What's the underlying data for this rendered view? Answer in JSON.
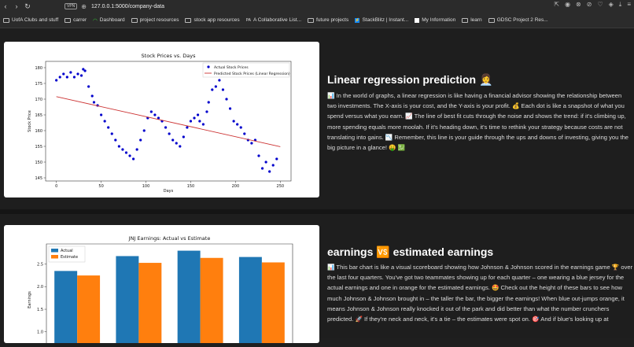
{
  "browser": {
    "url": "127.0.0.1:5000/company-data",
    "vpn_label": "VPN"
  },
  "bookmarks": [
    {
      "label": "UofA Clubs and stuff",
      "icon": "folder-icon"
    },
    {
      "label": "carrer",
      "icon": "folder-icon"
    },
    {
      "label": "Dashboard",
      "icon": "wifi-icon"
    },
    {
      "label": "project resources",
      "icon": "folder-icon"
    },
    {
      "label": "stock app resources",
      "icon": "folder-icon"
    },
    {
      "label": "A Collaborative List...",
      "icon": "pa-icon"
    },
    {
      "label": "future projects",
      "icon": "folder-icon"
    },
    {
      "label": "StackBlitz | Instant...",
      "icon": "stackblitz-icon"
    },
    {
      "label": "My Information",
      "icon": "page-icon"
    },
    {
      "label": "learn",
      "icon": "folder-icon"
    },
    {
      "label": "GDSC Project 2 Res...",
      "icon": "folder-icon"
    }
  ],
  "section1": {
    "heading": "Linear regression prediction 👩‍💼",
    "text": "📊 In the world of graphs, a linear regression is like having a financial advisor showing the relationship between two investments. The X-axis is your cost, and the Y-axis is your profit. 💰 Each dot is like a snapshot of what you spend versus what you earn. 📈 The line of best fit cuts through the noise and shows the trend: if it's climbing up, more spending equals more moolah. If it's heading down, it's time to rethink your strategy because costs are not translating into gains. 📉 Remember, this line is your guide through the ups and downs of investing, giving you the big picture in a glance! 🤑 💹"
  },
  "section2": {
    "heading": "earnings 🆚 estimated earnings",
    "text": "📊 This bar chart is like a visual scoreboard showing how Johnson & Johnson scored in the earnings game 🏆 over the last four quarters. You've got two teammates showing up for each quarter – one wearing a blue jersey for the actual earnings and one in orange for the estimated earnings. 🤩 Check out the height of these bars to see how much Johnson & Johnson brought in – the taller the bar, the bigger the earnings! When blue out-jumps orange, it means Johnson & Johnson really knocked it out of the park and did better than what the number crunchers predicted. 🚀 If they're neck and neck, it's a tie – the estimates were spot on. 🎯 And if blue's looking up at"
  },
  "chart_data": [
    {
      "type": "scatter",
      "title": "Stock Prices vs. Days",
      "xlabel": "Days",
      "ylabel": "Stock Price",
      "xlim": [
        -12,
        262
      ],
      "ylim": [
        144,
        182
      ],
      "xticks": [
        0,
        50,
        100,
        150,
        200,
        250
      ],
      "yticks": [
        145,
        150,
        155,
        160,
        165,
        170,
        175,
        180
      ],
      "legend_position": "top-right",
      "series": [
        {
          "name": "Actual Stock Prices",
          "color": "#0000cc",
          "points": [
            [
              0,
              176
            ],
            [
              4,
              177
            ],
            [
              8,
              178
            ],
            [
              12,
              177
            ],
            [
              16,
              178.5
            ],
            [
              20,
              177
            ],
            [
              24,
              178
            ],
            [
              28,
              177.5
            ],
            [
              30,
              179.5
            ],
            [
              32,
              179
            ],
            [
              36,
              174
            ],
            [
              40,
              171
            ],
            [
              42,
              169
            ],
            [
              46,
              168
            ],
            [
              50,
              165
            ],
            [
              54,
              163
            ],
            [
              58,
              161
            ],
            [
              62,
              159
            ],
            [
              66,
              157
            ],
            [
              70,
              155
            ],
            [
              74,
              154
            ],
            [
              78,
              153
            ],
            [
              82,
              152
            ],
            [
              86,
              151
            ],
            [
              90,
              154
            ],
            [
              94,
              157
            ],
            [
              98,
              160
            ],
            [
              102,
              164
            ],
            [
              106,
              166
            ],
            [
              110,
              165
            ],
            [
              114,
              164
            ],
            [
              118,
              163
            ],
            [
              122,
              161
            ],
            [
              126,
              159
            ],
            [
              130,
              157
            ],
            [
              134,
              156
            ],
            [
              138,
              155
            ],
            [
              142,
              158
            ],
            [
              146,
              161
            ],
            [
              150,
              163
            ],
            [
              154,
              164
            ],
            [
              158,
              165
            ],
            [
              160,
              163
            ],
            [
              164,
              162
            ],
            [
              168,
              166
            ],
            [
              170,
              169
            ],
            [
              174,
              173
            ],
            [
              178,
              174
            ],
            [
              182,
              176
            ],
            [
              186,
              173
            ],
            [
              190,
              170
            ],
            [
              194,
              167
            ],
            [
              198,
              163
            ],
            [
              202,
              162
            ],
            [
              206,
              161
            ],
            [
              210,
              159
            ],
            [
              214,
              157
            ],
            [
              218,
              156
            ],
            [
              222,
              157
            ],
            [
              226,
              152
            ],
            [
              230,
              148
            ],
            [
              234,
              150
            ],
            [
              238,
              147
            ],
            [
              242,
              149
            ],
            [
              246,
              151
            ]
          ]
        },
        {
          "name": "Predicted Stock Prices (Linear Regression)",
          "color": "#cc3333",
          "line": [
            [
              0,
              170.8
            ],
            [
              250,
              154.9
            ]
          ]
        }
      ]
    },
    {
      "type": "bar",
      "title": "JNJ Earnings: Actual vs Estimate",
      "ylabel": "Earnings",
      "ylim": [
        0.75,
        2.95
      ],
      "yticks": [
        1.0,
        1.5,
        2.0,
        2.5
      ],
      "legend_position": "top-left",
      "categories": [
        "",
        "",
        "",
        ""
      ],
      "series": [
        {
          "name": "Actual",
          "color": "#1f77b4",
          "values": [
            2.35,
            2.68,
            2.8,
            2.66
          ]
        },
        {
          "name": "Estimate",
          "color": "#ff7f0e",
          "values": [
            2.25,
            2.53,
            2.64,
            2.54
          ]
        }
      ]
    }
  ]
}
